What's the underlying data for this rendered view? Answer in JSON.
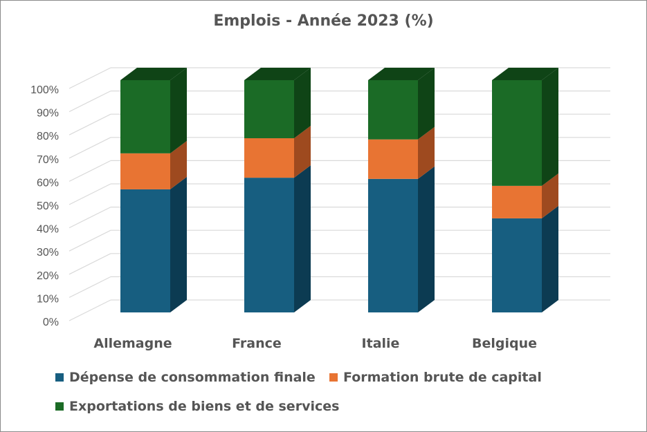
{
  "chart_data": {
    "type": "bar",
    "subtype": "stacked-100-3d",
    "title": "Emplois - Année 2023 (%)",
    "categories": [
      "Allemagne",
      "France",
      "Italie",
      "Belgique"
    ],
    "series": [
      {
        "name": "Dépense de consommation finale",
        "values": [
          53,
          58,
          57.5,
          40.5
        ],
        "color": "#175e80",
        "side_color": "#0c3b52"
      },
      {
        "name": "Formation brute de capital",
        "values": [
          15.5,
          17,
          17,
          14
        ],
        "color": "#e87433",
        "side_color": "#9e4a1f"
      },
      {
        "name": "Exportations de biens et de services",
        "values": [
          31.5,
          25,
          25.5,
          45.5
        ],
        "color": "#1b6b26",
        "side_color": "#0f4416"
      }
    ],
    "y_ticks": [
      "0%",
      "10%",
      "20%",
      "30%",
      "40%",
      "50%",
      "60%",
      "70%",
      "80%",
      "90%",
      "100%"
    ],
    "ylim": [
      0,
      100
    ],
    "grid": true,
    "legend_position": "bottom"
  }
}
